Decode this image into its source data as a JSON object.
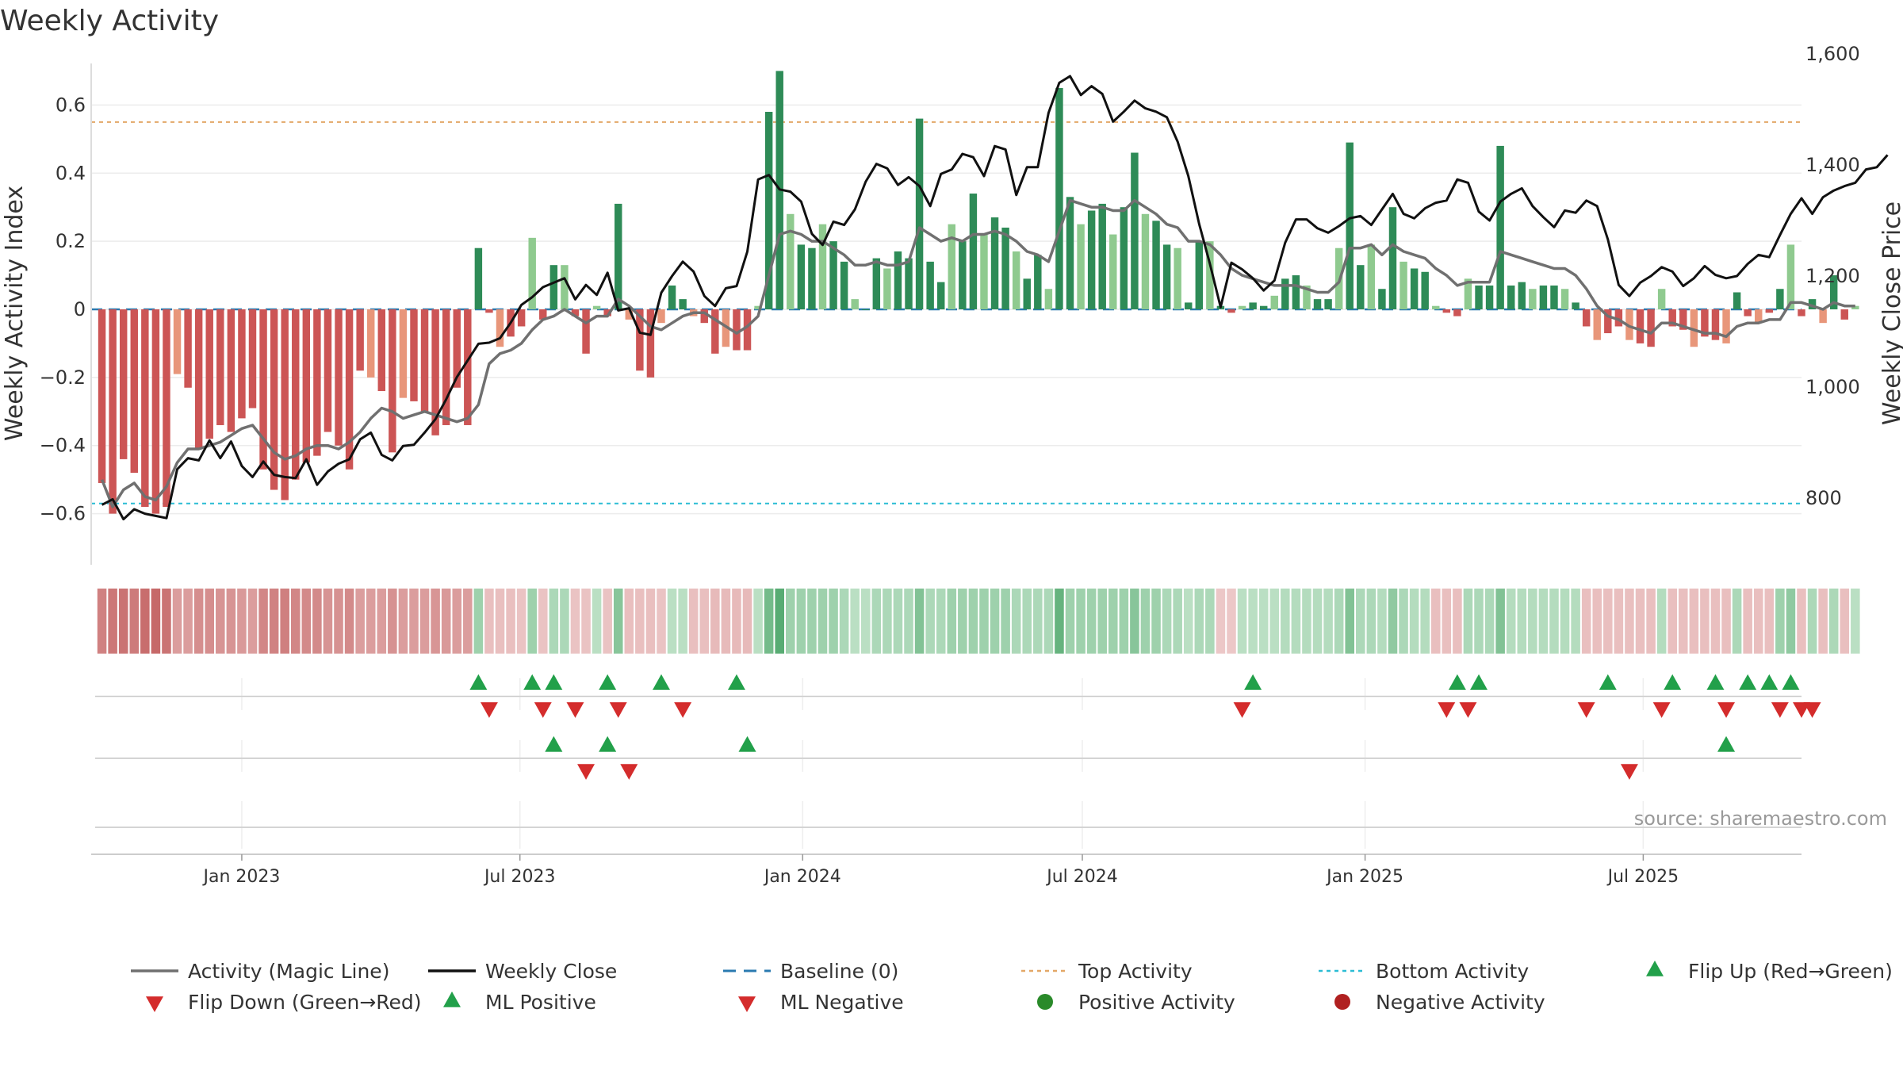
{
  "chart_data": {
    "type": "bar",
    "title": "Weekly Activity",
    "ylabel": "Weekly Activity Index",
    "y2label": "Weekly Close Price",
    "ylim": [
      -0.75,
      0.75
    ],
    "y2lim": [
      680,
      1600
    ],
    "yticks": [
      {
        "value": -0.6,
        "label": "−0.6"
      },
      {
        "value": -0.4,
        "label": "−0.4"
      },
      {
        "value": -0.2,
        "label": "−0.2"
      },
      {
        "value": 0,
        "label": "0"
      },
      {
        "value": 0.2,
        "label": "0.2"
      },
      {
        "value": 0.4,
        "label": "0.4"
      },
      {
        "value": 0.6,
        "label": "0.6"
      }
    ],
    "y2ticks": [
      {
        "value": 800,
        "label": "800"
      },
      {
        "value": 1000,
        "label": "1,000"
      },
      {
        "value": 1200,
        "label": "1,200"
      },
      {
        "value": 1400,
        "label": "1,400"
      },
      {
        "value": 1600,
        "label": "1,600"
      }
    ],
    "xrange": [
      "2022-09-25",
      "2025-10-12"
    ],
    "xticks": [
      {
        "date": "2023-01-01",
        "label": "Jan 2023"
      },
      {
        "date": "2023-07-01",
        "label": "Jul 2023"
      },
      {
        "date": "2024-01-01",
        "label": "Jan 2024"
      },
      {
        "date": "2024-07-01",
        "label": "Jul 2024"
      },
      {
        "date": "2025-01-01",
        "label": "Jan 2025"
      },
      {
        "date": "2025-07-01",
        "label": "Jul 2025"
      }
    ],
    "top_activity": 0.55,
    "bottom_activity": -0.57,
    "start_date": "2022-10-02",
    "week_step_days": 7,
    "activity": [
      -0.51,
      -0.6,
      -0.44,
      -0.48,
      -0.58,
      -0.6,
      -0.58,
      -0.19,
      -0.23,
      -0.41,
      -0.38,
      -0.34,
      -0.36,
      -0.32,
      -0.29,
      -0.47,
      -0.53,
      -0.56,
      -0.5,
      -0.45,
      -0.43,
      -0.36,
      -0.4,
      -0.47,
      -0.18,
      -0.2,
      -0.24,
      -0.42,
      -0.26,
      -0.27,
      -0.3,
      -0.37,
      -0.34,
      -0.23,
      -0.34,
      0.18,
      -0.01,
      -0.11,
      -0.08,
      -0.05,
      0.21,
      -0.03,
      0.13,
      0.13,
      -0.02,
      -0.13,
      0.01,
      -0.02,
      0.31,
      -0.03,
      -0.18,
      -0.2,
      -0.04,
      0.07,
      0.03,
      -0.02,
      -0.04,
      -0.13,
      -0.11,
      -0.12,
      -0.12,
      0.01,
      0.58,
      0.7,
      0.28,
      0.19,
      0.18,
      0.25,
      0.2,
      0.14,
      0.03,
      0,
      0.15,
      0.12,
      0.17,
      0.15,
      0.56,
      0.14,
      0.08,
      0.25,
      0.2,
      0.34,
      0.22,
      0.27,
      0.24,
      0.17,
      0.09,
      0.16,
      0.06,
      0.65,
      0.33,
      0.25,
      0.29,
      0.31,
      0.22,
      0.3,
      0.46,
      0.28,
      0.26,
      0.19,
      0.18,
      0.02,
      0.2,
      0.2,
      0.01,
      -0.01,
      0.01,
      0.02,
      0.01,
      0.04,
      0.09,
      0.1,
      0.07,
      0.03,
      0.03,
      0.18,
      0.49,
      0.13,
      0.19,
      0.06,
      0.3,
      0.14,
      0.12,
      0.11,
      0.01,
      -0.01,
      -0.02,
      0.09,
      0.07,
      0.07,
      0.48,
      0.07,
      0.08,
      0.06,
      0.07,
      0.07,
      0.06,
      0.02,
      -0.05,
      -0.09,
      -0.07,
      -0.05,
      -0.09,
      -0.1,
      -0.11,
      0.06,
      -0.05,
      -0.06,
      -0.11,
      -0.08,
      -0.09,
      -0.1,
      0.05,
      -0.02,
      -0.04,
      -0.01,
      0.06,
      0.19,
      -0.02,
      0.03,
      -0.04,
      0.1,
      -0.03,
      0.01
    ],
    "weekly_close": [
      788,
      798,
      762,
      780,
      772,
      768,
      764,
      852,
      872,
      868,
      904,
      872,
      902,
      858,
      838,
      866,
      842,
      838,
      836,
      870,
      824,
      848,
      862,
      870,
      906,
      918,
      878,
      868,
      894,
      896,
      918,
      942,
      978,
      1018,
      1048,
      1078,
      1080,
      1088,
      1116,
      1148,
      1162,
      1180,
      1188,
      1196,
      1158,
      1184,
      1166,
      1206,
      1138,
      1142,
      1098,
      1094,
      1170,
      1200,
      1226,
      1208,
      1164,
      1146,
      1178,
      1182,
      1244,
      1374,
      1382,
      1356,
      1352,
      1334,
      1276,
      1256,
      1298,
      1292,
      1320,
      1370,
      1402,
      1394,
      1364,
      1378,
      1362,
      1326,
      1384,
      1392,
      1420,
      1414,
      1380,
      1434,
      1428,
      1346,
      1396,
      1396,
      1494,
      1548,
      1560,
      1526,
      1542,
      1528,
      1478,
      1496,
      1516,
      1502,
      1496,
      1486,
      1442,
      1380,
      1294,
      1222,
      1144,
      1224,
      1212,
      1196,
      1174,
      1192,
      1260,
      1302,
      1302,
      1286,
      1278,
      1290,
      1304,
      1308,
      1292,
      1320,
      1348,
      1312,
      1304,
      1322,
      1332,
      1336,
      1374,
      1368,
      1316,
      1300,
      1334,
      1348,
      1358,
      1326,
      1306,
      1288,
      1318,
      1314,
      1336,
      1326,
      1266,
      1184,
      1164,
      1188,
      1200,
      1216,
      1208,
      1182,
      1196,
      1218,
      1202,
      1196,
      1200,
      1222,
      1238,
      1234,
      1274,
      1312,
      1340,
      1312,
      1342,
      1354,
      1362,
      1368,
      1392,
      1396,
      1418
    ],
    "magic_line": [
      -0.5,
      -0.58,
      -0.53,
      -0.51,
      -0.55,
      -0.56,
      -0.52,
      -0.45,
      -0.41,
      -0.41,
      -0.4,
      -0.39,
      -0.37,
      -0.35,
      -0.34,
      -0.38,
      -0.42,
      -0.44,
      -0.43,
      -0.41,
      -0.4,
      -0.4,
      -0.41,
      -0.39,
      -0.36,
      -0.32,
      -0.29,
      -0.3,
      -0.32,
      -0.31,
      -0.3,
      -0.31,
      -0.32,
      -0.33,
      -0.32,
      -0.28,
      -0.16,
      -0.13,
      -0.12,
      -0.1,
      -0.06,
      -0.03,
      -0.02,
      0.0,
      -0.02,
      -0.04,
      -0.02,
      -0.02,
      0.03,
      0.01,
      -0.02,
      -0.05,
      -0.06,
      -0.04,
      -0.02,
      -0.01,
      -0.01,
      -0.03,
      -0.05,
      -0.07,
      -0.05,
      -0.02,
      0.1,
      0.22,
      0.23,
      0.22,
      0.2,
      0.2,
      0.18,
      0.16,
      0.13,
      0.13,
      0.14,
      0.13,
      0.13,
      0.14,
      0.24,
      0.22,
      0.2,
      0.21,
      0.2,
      0.22,
      0.22,
      0.23,
      0.22,
      0.2,
      0.17,
      0.16,
      0.14,
      0.23,
      0.32,
      0.31,
      0.3,
      0.3,
      0.29,
      0.29,
      0.32,
      0.3,
      0.28,
      0.25,
      0.24,
      0.2,
      0.2,
      0.19,
      0.16,
      0.12,
      0.1,
      0.09,
      0.08,
      0.07,
      0.07,
      0.07,
      0.06,
      0.05,
      0.05,
      0.08,
      0.18,
      0.18,
      0.19,
      0.16,
      0.19,
      0.17,
      0.16,
      0.15,
      0.12,
      0.1,
      0.07,
      0.08,
      0.08,
      0.08,
      0.17,
      0.16,
      0.15,
      0.14,
      0.13,
      0.12,
      0.12,
      0.1,
      0.06,
      0.01,
      -0.02,
      -0.03,
      -0.05,
      -0.06,
      -0.07,
      -0.04,
      -0.04,
      -0.05,
      -0.06,
      -0.07,
      -0.07,
      -0.08,
      -0.05,
      -0.04,
      -0.04,
      -0.03,
      -0.03,
      0.02,
      0.02,
      0.01,
      0.0,
      0.02,
      0.01,
      0.01
    ],
    "color_strip": [
      -0.45,
      -0.5,
      -0.52,
      -0.48,
      -0.55,
      -0.58,
      -0.52,
      -0.3,
      -0.3,
      -0.38,
      -0.38,
      -0.35,
      -0.35,
      -0.32,
      -0.3,
      -0.42,
      -0.44,
      -0.46,
      -0.42,
      -0.4,
      -0.4,
      -0.35,
      -0.36,
      -0.4,
      -0.3,
      -0.3,
      -0.3,
      -0.36,
      -0.3,
      -0.3,
      -0.3,
      -0.34,
      -0.32,
      -0.3,
      -0.3,
      0.2,
      -0.12,
      -0.12,
      -0.12,
      -0.1,
      0.2,
      -0.1,
      0.15,
      0.15,
      -0.1,
      -0.1,
      0.1,
      -0.1,
      0.28,
      -0.12,
      -0.12,
      -0.12,
      -0.1,
      0.1,
      0.1,
      -0.12,
      -0.12,
      -0.15,
      -0.15,
      -0.15,
      -0.15,
      0.1,
      0.35,
      0.45,
      0.2,
      0.2,
      0.2,
      0.2,
      0.2,
      0.15,
      0.1,
      0.1,
      0.15,
      0.15,
      0.15,
      0.15,
      0.3,
      0.15,
      0.15,
      0.2,
      0.2,
      0.2,
      0.2,
      0.2,
      0.2,
      0.15,
      0.15,
      0.15,
      0.15,
      0.4,
      0.2,
      0.2,
      0.2,
      0.2,
      0.2,
      0.2,
      0.28,
      0.2,
      0.2,
      0.15,
      0.15,
      0.1,
      0.15,
      0.15,
      -0.08,
      -0.08,
      0.1,
      0.1,
      0.1,
      0.1,
      0.12,
      0.12,
      0.12,
      0.12,
      0.12,
      0.15,
      0.3,
      0.15,
      0.15,
      0.12,
      0.25,
      0.15,
      0.12,
      0.12,
      -0.12,
      -0.12,
      -0.12,
      0.15,
      0.15,
      0.15,
      0.3,
      0.12,
      0.12,
      0.12,
      0.12,
      0.12,
      0.12,
      0.12,
      -0.12,
      -0.12,
      -0.12,
      -0.12,
      -0.12,
      -0.12,
      -0.12,
      0.12,
      -0.12,
      -0.12,
      -0.12,
      -0.12,
      -0.12,
      -0.12,
      0.15,
      -0.12,
      -0.12,
      -0.12,
      0.2,
      0.25,
      -0.12,
      0.15,
      -0.12,
      0.15,
      -0.12,
      0.1
    ],
    "flip_up_weeks": [
      35,
      40,
      42,
      47,
      52,
      59,
      107,
      126,
      128,
      140,
      146,
      150,
      153,
      155,
      157
    ],
    "flip_down_weeks": [
      36,
      41,
      44,
      48,
      54,
      106,
      125,
      127,
      138,
      145,
      151,
      156,
      158,
      159
    ],
    "ml_positive_weeks": [
      42,
      47,
      60,
      151
    ],
    "ml_negative_weeks": [
      45,
      49,
      142
    ],
    "legend": [
      {
        "label": "Activity (Magic Line)",
        "symbol": "line",
        "color": "#707070"
      },
      {
        "label": "Weekly Close",
        "symbol": "line",
        "color": "#111111"
      },
      {
        "label": "Baseline (0)",
        "symbol": "dash",
        "color": "#2a7ab0"
      },
      {
        "label": "Top Activity",
        "symbol": "dot",
        "color": "#e3a868"
      },
      {
        "label": "Bottom Activity",
        "symbol": "dot",
        "color": "#2bbcd4"
      },
      {
        "label": "Flip Up (Red→Green)",
        "symbol": "tri-up",
        "color": "#22a04a"
      },
      {
        "label": "Flip Down (Green→Red)",
        "symbol": "tri-down",
        "color": "#d42c2c"
      },
      {
        "label": "ML Positive",
        "symbol": "tri-up",
        "color": "#22a04a"
      },
      {
        "label": "ML Negative",
        "symbol": "tri-down",
        "color": "#d42c2c"
      },
      {
        "label": "Positive Activity",
        "symbol": "circle",
        "color": "#2a8a2a"
      },
      {
        "label": "Negative Activity",
        "symbol": "circle",
        "color": "#b02020"
      }
    ],
    "source": "source: sharemaestro.com"
  },
  "colors": {
    "pos_strong": "#2e8b57",
    "pos_light": "#8fca8f",
    "neg_strong": "#cc5555",
    "neg_light": "#e8967a",
    "magic_line": "#707070",
    "close": "#111111",
    "baseline": "#2a7ab0",
    "top": "#e3a868",
    "bottom": "#2bbcd4",
    "up_marker": "#22a04a",
    "down_marker": "#d42c2c"
  }
}
